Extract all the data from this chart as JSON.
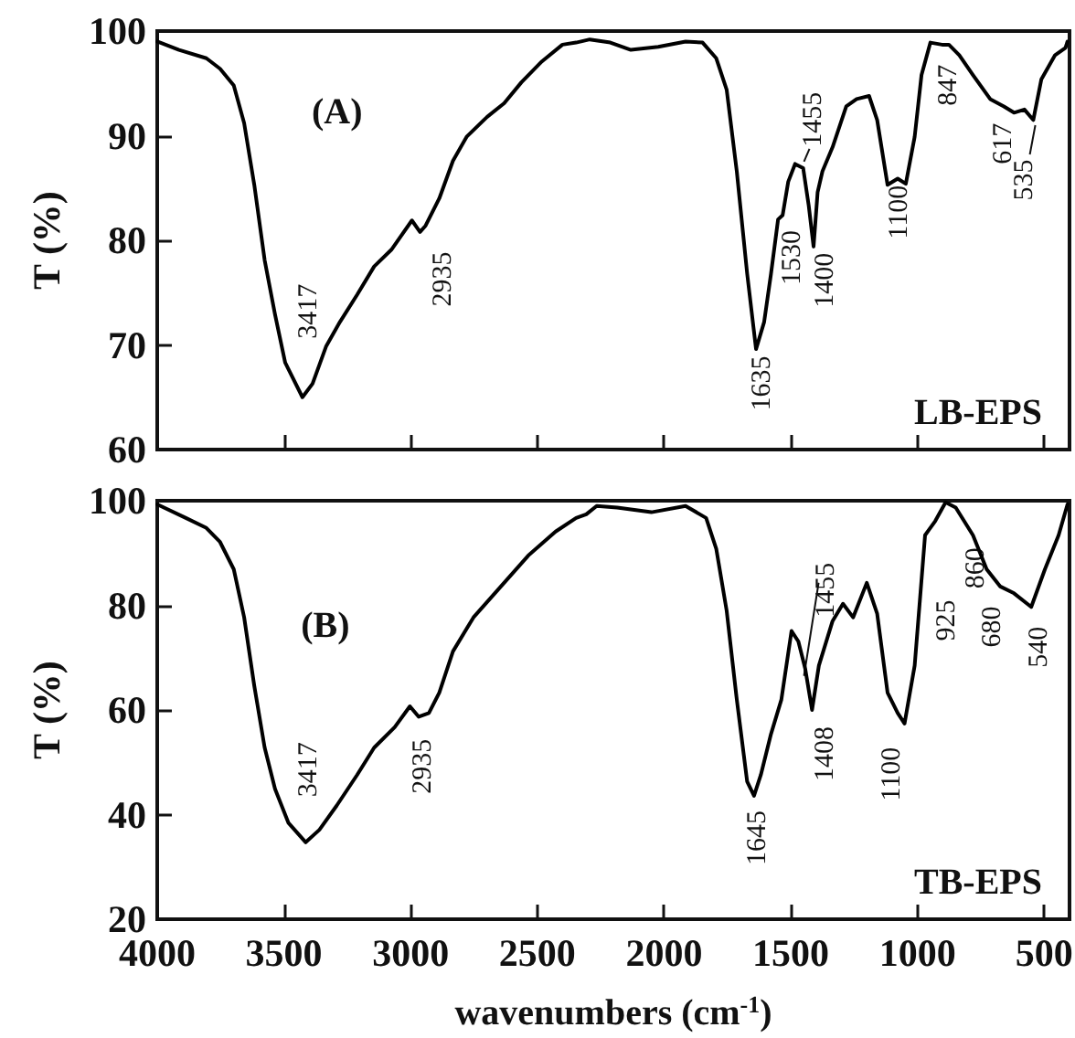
{
  "chart_data": [
    {
      "type": "line",
      "ylabel": "T (%)",
      "xlim": [
        4000,
        400
      ],
      "xticks": [
        4000,
        3500,
        3000,
        2500,
        2000,
        1500,
        1000,
        500
      ],
      "ylim": [
        60,
        100
      ],
      "yticks": [
        60,
        70,
        80,
        90,
        100
      ],
      "tick_labels": "y",
      "marker": "none",
      "line_style": "solid",
      "series": [
        {
          "color": "#000000",
          "x": [
            4000,
            3914,
            3806,
            3752,
            3698,
            3657,
            3617,
            3576,
            3535,
            3495,
            3427,
            3387,
            3333,
            3279,
            3211,
            3144,
            3076,
            2995,
            2963,
            2941,
            2887,
            2833,
            2779,
            2698,
            2631,
            2563,
            2482,
            2401,
            2347,
            2293,
            2212,
            2131,
            2023,
            1915,
            1848,
            1794,
            1753,
            1713,
            1672,
            1637,
            1605,
            1578,
            1550,
            1532,
            1510,
            1483,
            1451,
            1429,
            1410,
            1394,
            1375,
            1335,
            1281,
            1240,
            1191,
            1159,
            1118,
            1078,
            1046,
            1011,
            984,
            949,
            903,
            876,
            835,
            781,
            713,
            659,
            619,
            578,
            543,
            511,
            457,
            416,
            408
          ],
          "values": [
            99,
            98.2,
            97.4,
            96.4,
            94.8,
            91.2,
            85.3,
            78.1,
            72.9,
            68.3,
            65,
            66.3,
            69.9,
            72.2,
            74.8,
            77.5,
            79.1,
            81.9,
            80.8,
            81.4,
            84,
            87.6,
            89.9,
            91.8,
            93.1,
            95.1,
            97.1,
            98.7,
            98.9,
            99.2,
            98.9,
            98.2,
            98.5,
            99,
            98.9,
            97.4,
            94.4,
            86.6,
            76.8,
            69.6,
            72.2,
            76.8,
            82,
            82.4,
            85.6,
            87.3,
            86.9,
            83.3,
            79.4,
            84.6,
            86.6,
            88.9,
            92.8,
            93.5,
            93.8,
            91.5,
            85.3,
            85.9,
            85.4,
            89.9,
            95.8,
            98.9,
            98.7,
            98.7,
            97.7,
            95.8,
            93.5,
            92.8,
            92.2,
            92.5,
            91.5,
            95.4,
            97.7,
            98.4,
            99
          ]
        }
      ],
      "annotations": [
        "(A)",
        "LB-EPS",
        {
          "text": "3417",
          "x": 3417,
          "y": 65
        },
        {
          "text": "2935",
          "x": 2935,
          "y": 81
        },
        {
          "text": "1635",
          "x": 1635,
          "y": 70
        },
        {
          "text": "1530",
          "x": 1530,
          "y": 82
        },
        {
          "text": "1455",
          "x": 1455,
          "y": 87
        },
        {
          "text": "1400",
          "x": 1400,
          "y": 79.5
        },
        {
          "text": "1100",
          "x": 1100,
          "y": 86
        },
        {
          "text": "847",
          "x": 847,
          "y": 97.8
        },
        {
          "text": "617",
          "x": 617,
          "y": 92.2
        },
        {
          "text": "535",
          "x": 535,
          "y": 91.7
        }
      ]
    },
    {
      "type": "line",
      "xlabel": "wavenumbers (cm$^{-1}$)",
      "ylabel": "T (%)",
      "xlim": [
        4000,
        400
      ],
      "xticks": [
        4000,
        3500,
        3000,
        2500,
        2000,
        1500,
        1000,
        500
      ],
      "ylim": [
        20,
        100
      ],
      "yticks": [
        20,
        40,
        60,
        80,
        100
      ],
      "marker": "none",
      "line_style": "solid",
      "series": [
        {
          "color": "#000000",
          "x": [
            4000,
            3887,
            3806,
            3752,
            3698,
            3657,
            3617,
            3576,
            3535,
            3482,
            3414,
            3360,
            3292,
            3211,
            3144,
            3063,
            3003,
            2968,
            2928,
            2887,
            2833,
            2752,
            2644,
            2536,
            2428,
            2347,
            2307,
            2266,
            2185,
            2050,
            1915,
            1834,
            1794,
            1753,
            1713,
            1672,
            1645,
            1618,
            1578,
            1537,
            1497,
            1470,
            1443,
            1416,
            1389,
            1335,
            1294,
            1254,
            1200,
            1159,
            1118,
            1078,
            1051,
            1011,
            970,
            930,
            889,
            849,
            781,
            727,
            673,
            619,
            551,
            497,
            443,
            408
          ],
          "values": [
            99.3,
            96.7,
            94.8,
            92.1,
            86.9,
            77.7,
            64.6,
            52.8,
            44.9,
            38.4,
            34.7,
            37.1,
            41.7,
            47.6,
            52.8,
            56.7,
            60.7,
            58.7,
            59.4,
            63.3,
            71.2,
            77.7,
            83.6,
            89.5,
            94.1,
            96.7,
            97.4,
            99,
            98.7,
            97.8,
            99,
            96.7,
            90.8,
            79,
            62,
            46.3,
            43.6,
            47.6,
            55.4,
            62,
            75.1,
            73.1,
            67.9,
            60,
            68.5,
            77,
            80.3,
            77.7,
            84.3,
            78.4,
            63.3,
            59.4,
            57.4,
            68.5,
            93.4,
            96.1,
            99.7,
            98.7,
            93.4,
            86.9,
            83.6,
            82.3,
            79.7,
            86.9,
            93.4,
            99.3
          ]
        }
      ],
      "annotations": [
        "(B)",
        "TB-EPS",
        {
          "text": "3417",
          "x": 3417,
          "y": 35
        },
        {
          "text": "2935",
          "x": 2935,
          "y": 59
        },
        {
          "text": "1645",
          "x": 1645,
          "y": 43.6
        },
        {
          "text": "1455",
          "x": 1455,
          "y": 70
        },
        {
          "text": "1408",
          "x": 1408,
          "y": 60
        },
        {
          "text": "1100",
          "x": 1100,
          "y": 57.5
        },
        {
          "text": "925",
          "x": 925,
          "y": 96
        },
        {
          "text": "860",
          "x": 860,
          "y": 99
        },
        {
          "text": "680",
          "x": 680,
          "y": 83.6
        },
        {
          "text": "540",
          "x": 540,
          "y": 79.7
        }
      ]
    }
  ]
}
